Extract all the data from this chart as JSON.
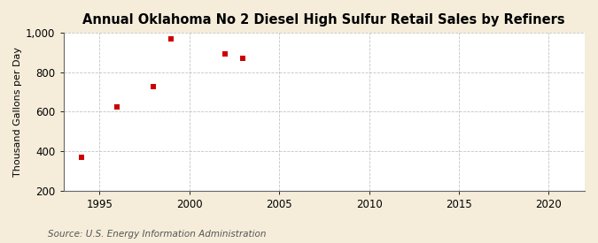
{
  "title": "Annual Oklahoma No 2 Diesel High Sulfur Retail Sales by Refiners",
  "ylabel": "Thousand Gallons per Day",
  "source": "Source: U.S. Energy Information Administration",
  "x_data": [
    1994,
    1996,
    1998,
    1999,
    2002,
    2003
  ],
  "y_data": [
    370,
    622,
    728,
    968,
    893,
    868
  ],
  "marker_color": "#cc0000",
  "marker": "s",
  "marker_size": 5,
  "xlim": [
    1993,
    2022
  ],
  "ylim": [
    200,
    1000
  ],
  "xticks": [
    1995,
    2000,
    2005,
    2010,
    2015,
    2020
  ],
  "yticks": [
    200,
    400,
    600,
    800,
    1000
  ],
  "ytick_labels": [
    "200",
    "400",
    "600",
    "800",
    "1,000"
  ],
  "fig_background_color": "#f5edda",
  "plot_background_color": "#ffffff",
  "grid_color": "#aaaaaa",
  "title_fontsize": 10.5,
  "label_fontsize": 8,
  "tick_fontsize": 8.5,
  "source_fontsize": 7.5
}
